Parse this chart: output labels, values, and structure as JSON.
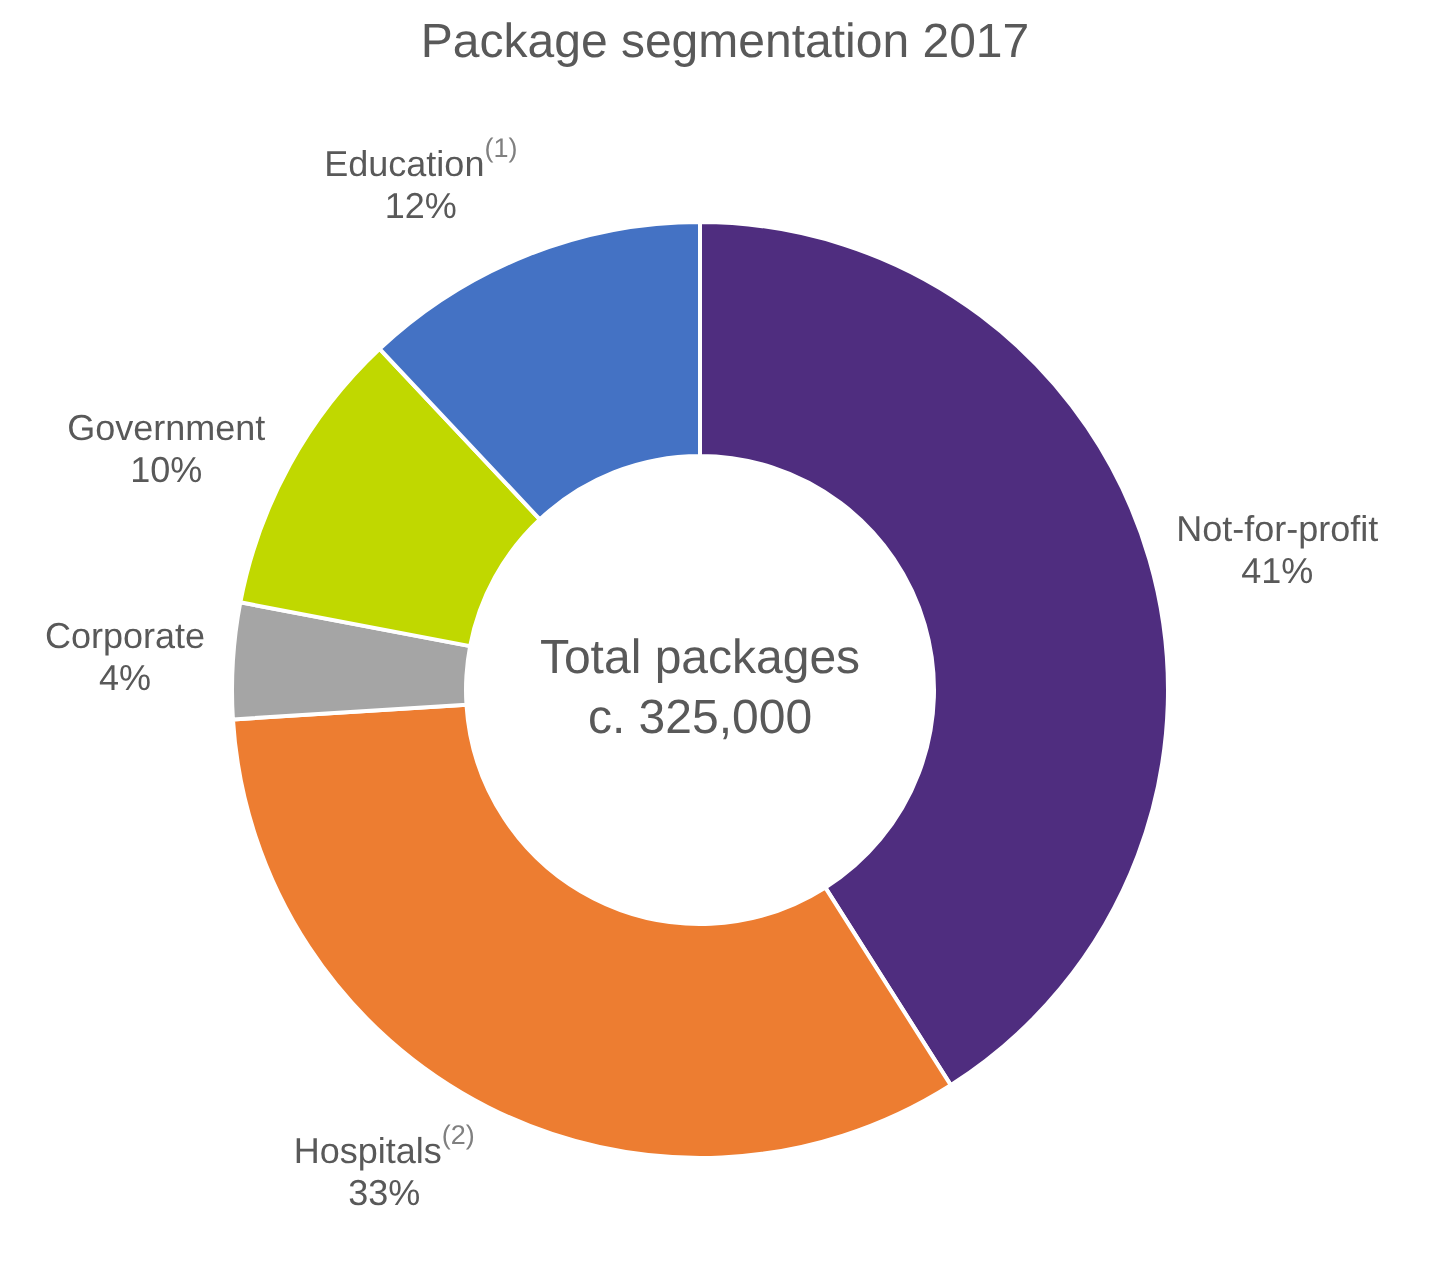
{
  "chart_data": {
    "type": "donut",
    "title": "Package segmentation 2017",
    "categories": [
      "Not-for-profit",
      "Hospitals$^{(2)}$",
      "Corporate",
      "Government",
      "Education$^{(1)}$"
    ],
    "values": [
      41,
      33,
      4,
      10,
      12
    ],
    "value_labels": [
      "41%",
      "33%",
      "4%",
      "10%",
      "12%"
    ],
    "colors": [
      "#4f2d7f",
      "#ed7d31",
      "#a5a5a5",
      "#c0d800",
      "#4472c4"
    ],
    "annotations": [
      "Total packages",
      "c. 325,000"
    ],
    "legend": false
  }
}
